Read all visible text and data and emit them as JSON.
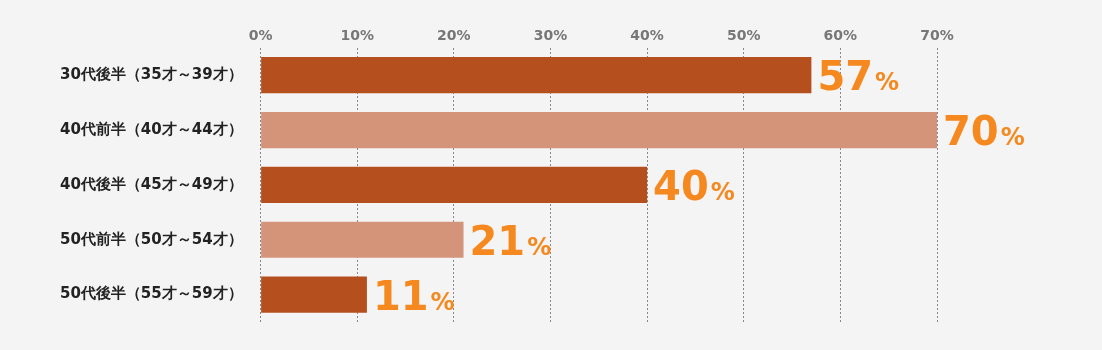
{
  "chart_data": {
    "type": "bar",
    "orientation": "horizontal",
    "categories": [
      "30代後半（35才～39才）",
      "40代前半（40才～44才）",
      "40代後半（45才～49才）",
      "50代前半（50才～54才）",
      "50代後半（55才～59才）"
    ],
    "values": [
      57,
      70,
      40,
      21,
      11
    ],
    "colors": [
      "#b5501e",
      "#d4947a",
      "#b5501e",
      "#d4947a",
      "#b5501e"
    ],
    "value_labels": [
      "57%",
      "70%",
      "40%",
      "21%",
      "11%"
    ],
    "xlim": [
      0,
      70
    ],
    "xticks": [
      {
        "value": 0,
        "label": "0%"
      },
      {
        "value": 10,
        "label": "10%"
      },
      {
        "value": 20,
        "label": "20%"
      },
      {
        "value": 30,
        "label": "30%"
      },
      {
        "value": 40,
        "label": "40%"
      },
      {
        "value": 50,
        "label": "50%"
      },
      {
        "value": 60,
        "label": "60%"
      },
      {
        "value": 70,
        "label": "70%"
      }
    ],
    "grid": "x",
    "legend": false
  }
}
